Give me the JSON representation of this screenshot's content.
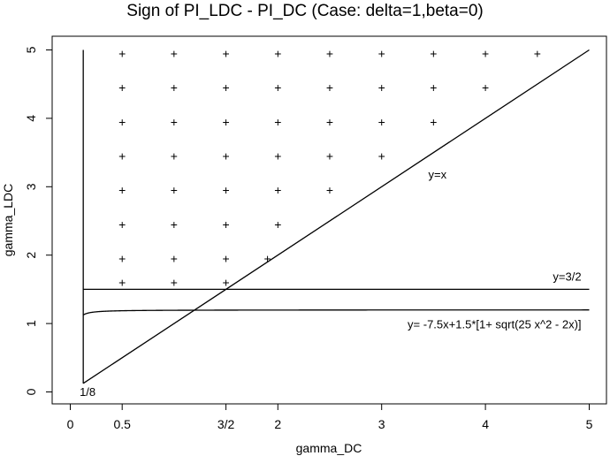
{
  "chart_data": {
    "type": "scatter",
    "title": "Sign of PI_LDC - PI_DC (Case: delta=1,beta=0)",
    "xlabel": "gamma_DC",
    "ylabel": "gamma_LDC",
    "xlim": [
      -0.2,
      5.2
    ],
    "ylim": [
      -0.2,
      5.2
    ],
    "x_ticks": [
      {
        "value": 0,
        "label": "0"
      },
      {
        "value": 0.5,
        "label": "0.5"
      },
      {
        "value": 1.5,
        "label": "3/2"
      },
      {
        "value": 2,
        "label": "2"
      },
      {
        "value": 3,
        "label": "3"
      },
      {
        "value": 4,
        "label": "4"
      },
      {
        "value": 5,
        "label": "5"
      }
    ],
    "y_ticks": [
      {
        "value": 0,
        "label": "0"
      },
      {
        "value": 1,
        "label": "1"
      },
      {
        "value": 2,
        "label": "2"
      },
      {
        "value": 3,
        "label": "3"
      },
      {
        "value": 4,
        "label": "4"
      },
      {
        "value": 5,
        "label": "5"
      }
    ],
    "marker": "+",
    "points": [
      [
        0.5,
        1.6
      ],
      [
        1,
        1.6
      ],
      [
        1.5,
        1.6
      ],
      [
        0.5,
        1.95
      ],
      [
        1,
        1.95
      ],
      [
        1.5,
        1.95
      ],
      [
        1.9,
        1.95
      ],
      [
        0.5,
        2.45
      ],
      [
        1,
        2.45
      ],
      [
        1.5,
        2.45
      ],
      [
        2,
        2.45
      ],
      [
        0.5,
        2.95
      ],
      [
        1,
        2.95
      ],
      [
        1.5,
        2.95
      ],
      [
        2,
        2.95
      ],
      [
        2.5,
        2.95
      ],
      [
        0.5,
        3.45
      ],
      [
        1,
        3.45
      ],
      [
        1.5,
        3.45
      ],
      [
        2,
        3.45
      ],
      [
        2.5,
        3.45
      ],
      [
        3,
        3.45
      ],
      [
        0.5,
        3.95
      ],
      [
        1,
        3.95
      ],
      [
        1.5,
        3.95
      ],
      [
        2,
        3.95
      ],
      [
        2.5,
        3.95
      ],
      [
        3,
        3.95
      ],
      [
        3.5,
        3.95
      ],
      [
        0.5,
        4.45
      ],
      [
        1,
        4.45
      ],
      [
        1.5,
        4.45
      ],
      [
        2,
        4.45
      ],
      [
        2.5,
        4.45
      ],
      [
        3,
        4.45
      ],
      [
        3.5,
        4.45
      ],
      [
        4,
        4.45
      ],
      [
        0.5,
        4.95
      ],
      [
        1,
        4.95
      ],
      [
        1.5,
        4.95
      ],
      [
        2,
        4.95
      ],
      [
        2.5,
        4.95
      ],
      [
        3,
        4.95
      ],
      [
        3.5,
        4.95
      ],
      [
        4,
        4.95
      ],
      [
        4.5,
        4.95
      ]
    ],
    "lines": [
      {
        "label": "y=x",
        "x": [
          0.125,
          5
        ],
        "y": [
          0.125,
          5
        ]
      },
      {
        "label": "y=3/2",
        "x": [
          0.125,
          5
        ],
        "y": [
          1.5,
          1.5
        ]
      },
      {
        "label": "y= -7.5x+1.5*[1+ sqrt(25 x^2 - 2x)]",
        "function": "-7.5x+1.5*(1+sqrt(25x^2-2x))",
        "x_start": 0.125,
        "x_end": 5
      },
      {
        "label": "",
        "x": [
          0.125,
          0.125
        ],
        "y": [
          0.125,
          5
        ]
      }
    ],
    "annotations": [
      {
        "text": "y=x",
        "x": 3.45,
        "y": 3.12
      },
      {
        "text": "y=3/2",
        "x": 4.65,
        "y": 1.63
      },
      {
        "text": "y= -7.5x+1.5*[1+ sqrt(25 x^2 - 2x)]",
        "x": 3.25,
        "y": 0.93
      },
      {
        "text": "1/8",
        "x": 0.09,
        "y": -0.06
      }
    ]
  }
}
